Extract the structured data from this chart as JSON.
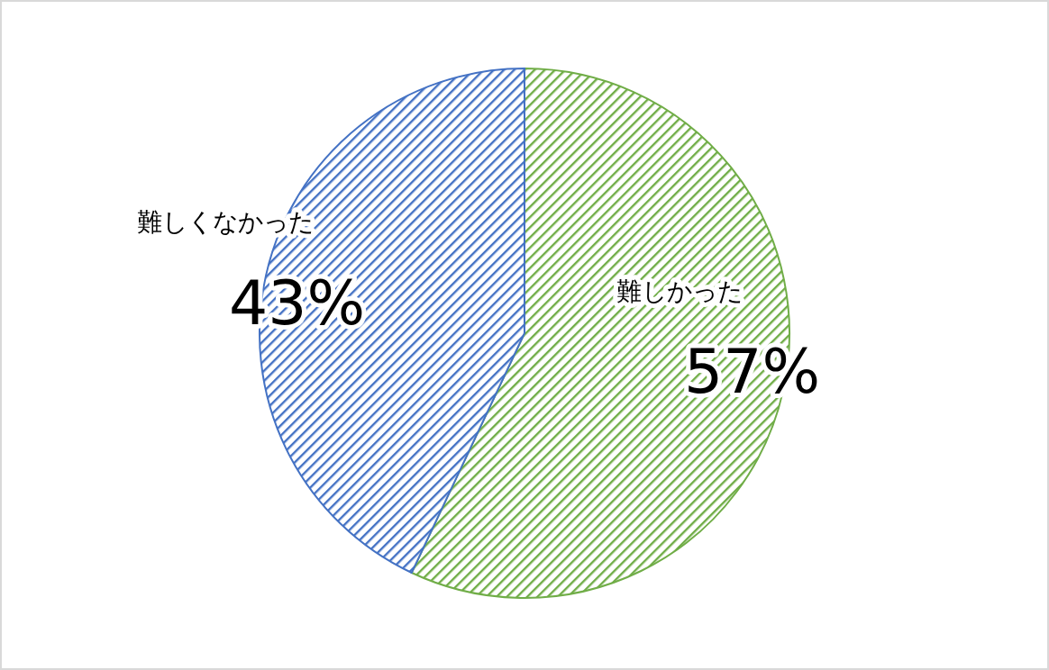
{
  "chart_data": {
    "type": "pie",
    "categories": [
      "難しかった",
      "難しくなかった"
    ],
    "values": [
      57,
      43
    ],
    "colors": [
      "#70ad47",
      "#4472c4"
    ],
    "value_labels": [
      "57%",
      "43%"
    ]
  }
}
